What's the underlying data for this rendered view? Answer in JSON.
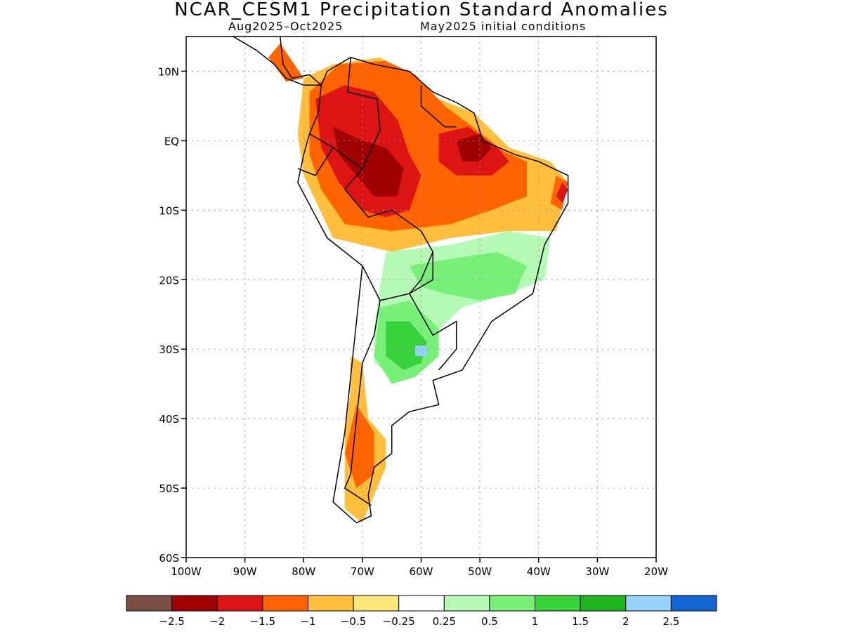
{
  "title": "NCAR_CESM1 Precipitation Standard Anomalies",
  "subtitle_left": "Aug2025–Oct2025",
  "subtitle_right": "May2025 initial conditions",
  "map": {
    "lon_range": [
      -100,
      -20
    ],
    "lat_range": [
      -60,
      15
    ],
    "lat_ticks": [
      {
        "value": 10,
        "label": "10N"
      },
      {
        "value": 0,
        "label": "EQ"
      },
      {
        "value": -10,
        "label": "10S"
      },
      {
        "value": -20,
        "label": "20S"
      },
      {
        "value": -30,
        "label": "30S"
      },
      {
        "value": -40,
        "label": "40S"
      },
      {
        "value": -50,
        "label": "50S"
      },
      {
        "value": -60,
        "label": "60S"
      }
    ],
    "lon_ticks": [
      {
        "value": -100,
        "label": "100W"
      },
      {
        "value": -90,
        "label": "90W"
      },
      {
        "value": -80,
        "label": "80W"
      },
      {
        "value": -70,
        "label": "70W"
      },
      {
        "value": -60,
        "label": "60W"
      },
      {
        "value": -50,
        "label": "50W"
      },
      {
        "value": -40,
        "label": "40W"
      },
      {
        "value": -30,
        "label": "30W"
      },
      {
        "value": -20,
        "label": "20W"
      }
    ],
    "grid": true
  },
  "colorbar": {
    "colors": [
      "#7b5044",
      "#a00000",
      "#dc1414",
      "#ff6400",
      "#ffbe3c",
      "#ffe678",
      "#ffffff",
      "#b4fab4",
      "#78f078",
      "#37d23c",
      "#1eb41e",
      "#96d2fa",
      "#1464d2"
    ],
    "labels": [
      "−2.5",
      "−2",
      "−1.5",
      "−1",
      "−0.5",
      "−0.25",
      "0.25",
      "0.5",
      "1",
      "1.5",
      "2",
      "2.5"
    ]
  },
  "anomaly_regions": [
    {
      "name": "central america",
      "level": -1,
      "points": [
        [
          -84,
          14
        ],
        [
          -82,
          11.5
        ],
        [
          -80,
          9
        ],
        [
          -83,
          8.5
        ],
        [
          -86,
          12
        ]
      ]
    },
    {
      "name": "northwest amazon ring",
      "level": -0.5,
      "points": [
        [
          -80,
          9
        ],
        [
          -75,
          11
        ],
        [
          -67,
          12
        ],
        [
          -62,
          9.5
        ],
        [
          -57,
          6
        ],
        [
          -51,
          4
        ],
        [
          -45,
          -1
        ],
        [
          -38,
          -3
        ],
        [
          -35,
          -6
        ],
        [
          -37,
          -13
        ],
        [
          -45,
          -13
        ],
        [
          -55,
          -14
        ],
        [
          -65,
          -16
        ],
        [
          -75,
          -14
        ],
        [
          -80,
          -5
        ],
        [
          -81,
          1
        ]
      ]
    },
    {
      "name": "northern band",
      "level": -1,
      "points": [
        [
          -79,
          7
        ],
        [
          -74,
          11
        ],
        [
          -66,
          11.5
        ],
        [
          -61,
          9.5
        ],
        [
          -56,
          5
        ],
        [
          -52,
          2.5
        ],
        [
          -46,
          -1.5
        ],
        [
          -42,
          -3
        ],
        [
          -42,
          -8
        ],
        [
          -48,
          -10
        ],
        [
          -55,
          -12
        ],
        [
          -65,
          -13
        ],
        [
          -73,
          -12
        ],
        [
          -77,
          -7
        ],
        [
          -79,
          -2
        ]
      ]
    },
    {
      "name": "western amazon",
      "level": -1.5,
      "points": [
        [
          -78,
          6
        ],
        [
          -73,
          8
        ],
        [
          -68,
          7
        ],
        [
          -64,
          3
        ],
        [
          -62,
          -2
        ],
        [
          -60,
          -5
        ],
        [
          -62,
          -10
        ],
        [
          -66,
          -11
        ],
        [
          -70,
          -10
        ],
        [
          -74,
          -6
        ],
        [
          -77,
          -1
        ]
      ]
    },
    {
      "name": "western amazon core",
      "level": -2,
      "points": [
        [
          -75,
          2
        ],
        [
          -70,
          0
        ],
        [
          -66,
          -1
        ],
        [
          -63,
          -4
        ],
        [
          -64,
          -8
        ],
        [
          -68,
          -8
        ],
        [
          -71,
          -5
        ],
        [
          -74,
          -2
        ]
      ]
    },
    {
      "name": "eastern amazon",
      "level": -1.5,
      "points": [
        [
          -57,
          1
        ],
        [
          -52,
          2
        ],
        [
          -47,
          -1
        ],
        [
          -45,
          -3
        ],
        [
          -48,
          -5
        ],
        [
          -54,
          -5
        ],
        [
          -57,
          -3
        ]
      ]
    },
    {
      "name": "eastern amazon core",
      "level": -2,
      "points": [
        [
          -54,
          0
        ],
        [
          -50,
          1
        ],
        [
          -48,
          -1
        ],
        [
          -50,
          -3
        ],
        [
          -53,
          -3
        ]
      ]
    },
    {
      "name": "northeast brazil",
      "level": -1,
      "points": [
        [
          -37,
          -5
        ],
        [
          -35,
          -6
        ],
        [
          -36,
          -10
        ],
        [
          -38,
          -9
        ]
      ]
    },
    {
      "name": "northeast brazil core",
      "level": -1.5,
      "points": [
        [
          -36,
          -6
        ],
        [
          -35,
          -7
        ],
        [
          -36,
          -9
        ],
        [
          -37,
          -8
        ]
      ]
    },
    {
      "name": "central brazil wet",
      "level": 0.5,
      "points": [
        [
          -66,
          -16
        ],
        [
          -55,
          -15
        ],
        [
          -45,
          -13
        ],
        [
          -38,
          -14
        ],
        [
          -39,
          -20
        ],
        [
          -45,
          -22
        ],
        [
          -53,
          -24
        ],
        [
          -58,
          -28
        ],
        [
          -61,
          -32
        ],
        [
          -64,
          -34
        ],
        [
          -68,
          -32
        ],
        [
          -68,
          -27
        ],
        [
          -67,
          -21
        ]
      ]
    },
    {
      "name": "central brazil core",
      "level": 1,
      "points": [
        [
          -62,
          -18
        ],
        [
          -55,
          -17
        ],
        [
          -47,
          -16
        ],
        [
          -42,
          -18
        ],
        [
          -44,
          -22
        ],
        [
          -50,
          -23
        ],
        [
          -56,
          -22
        ],
        [
          -60,
          -21
        ]
      ]
    },
    {
      "name": "argentina wet",
      "level": 1,
      "points": [
        [
          -67,
          -24
        ],
        [
          -62,
          -23
        ],
        [
          -57,
          -27
        ],
        [
          -57,
          -31
        ],
        [
          -61,
          -34
        ],
        [
          -65,
          -35
        ],
        [
          -68,
          -31
        ]
      ]
    },
    {
      "name": "argentina core",
      "level": 1.5,
      "points": [
        [
          -66,
          -26
        ],
        [
          -62,
          -26
        ],
        [
          -59,
          -29
        ],
        [
          -60,
          -32
        ],
        [
          -63,
          -33
        ],
        [
          -66,
          -31
        ]
      ]
    },
    {
      "name": "argentina blue spot",
      "level": 2,
      "points": [
        [
          -61,
          -29.5
        ],
        [
          -59,
          -29.5
        ],
        [
          -59,
          -31
        ],
        [
          -61,
          -31
        ]
      ]
    },
    {
      "name": "chile dry",
      "level": -0.5,
      "points": [
        [
          -72,
          -31
        ],
        [
          -70,
          -32
        ],
        [
          -69,
          -40
        ],
        [
          -66,
          -43
        ],
        [
          -66,
          -47
        ],
        [
          -70,
          -55
        ],
        [
          -73,
          -53
        ],
        [
          -73,
          -42
        ],
        [
          -72,
          -36
        ]
      ]
    },
    {
      "name": "chile dry core",
      "level": -1,
      "points": [
        [
          -71,
          -38
        ],
        [
          -68,
          -42
        ],
        [
          -68,
          -48
        ],
        [
          -71,
          -50
        ],
        [
          -73,
          -45
        ]
      ]
    }
  ],
  "coastline": [
    [
      -77,
      8
    ],
    [
      -76,
      10
    ],
    [
      -72,
      12
    ],
    [
      -68,
      11
    ],
    [
      -62,
      10
    ],
    [
      -58,
      7
    ],
    [
      -54,
      5.5
    ],
    [
      -51,
      4
    ],
    [
      -49.5,
      0
    ],
    [
      -44,
      -2
    ],
    [
      -40,
      -3
    ],
    [
      -35,
      -5
    ],
    [
      -35,
      -9
    ],
    [
      -39,
      -15
    ],
    [
      -41,
      -22
    ],
    [
      -48,
      -26
    ],
    [
      -53,
      -33
    ],
    [
      -58,
      -34.5
    ],
    [
      -57,
      -38
    ],
    [
      -62,
      -39
    ],
    [
      -65,
      -41
    ],
    [
      -65,
      -45
    ],
    [
      -68,
      -47
    ],
    [
      -69,
      -51
    ],
    [
      -68.5,
      -54
    ],
    [
      -71,
      -55
    ],
    [
      -75,
      -52
    ],
    [
      -73,
      -42
    ],
    [
      -71.5,
      -30
    ],
    [
      -70,
      -18
    ],
    [
      -76,
      -14
    ],
    [
      -81,
      -6
    ],
    [
      -80,
      -2
    ],
    [
      -79,
      1
    ],
    [
      -77.5,
      4
    ]
  ],
  "central_america": [
    [
      -92,
      15
    ],
    [
      -88,
      13
    ],
    [
      -85,
      11
    ],
    [
      -83,
      9
    ],
    [
      -80,
      8
    ],
    [
      -77,
      8
    ],
    [
      -79,
      9.5
    ],
    [
      -82,
      9
    ],
    [
      -83.5,
      11
    ],
    [
      -84,
      15
    ],
    [
      -88,
      16
    ],
    [
      -92,
      16
    ]
  ],
  "borders": [
    [
      [
        -72,
        12
      ],
      [
        -72.5,
        7
      ],
      [
        -67.5,
        6
      ],
      [
        -67,
        1.5
      ],
      [
        -70,
        -4
      ],
      [
        -73,
        -7
      ],
      [
        -69,
        -11
      ],
      [
        -65,
        -10
      ],
      [
        -60,
        -13
      ],
      [
        -58,
        -16
      ],
      [
        -58,
        -20
      ],
      [
        -62,
        -22
      ],
      [
        -58,
        -28
      ],
      [
        -54,
        -26
      ],
      [
        -54,
        -30
      ],
      [
        -57,
        -33
      ]
    ],
    [
      [
        -60,
        8
      ],
      [
        -60,
        5
      ],
      [
        -56,
        2
      ],
      [
        -54,
        2
      ]
    ],
    [
      [
        -79,
        1
      ],
      [
        -75,
        -1
      ],
      [
        -70,
        -4
      ]
    ],
    [
      [
        -81,
        -4
      ],
      [
        -78,
        -5
      ],
      [
        -75,
        -1
      ]
    ],
    [
      [
        -70,
        -18
      ],
      [
        -67,
        -23
      ],
      [
        -68,
        -28
      ],
      [
        -70,
        -32
      ],
      [
        -71,
        -40
      ],
      [
        -72,
        -48
      ],
      [
        -73,
        -50
      ],
      [
        -68.5,
        -52.5
      ]
    ],
    [
      [
        -62,
        -22
      ],
      [
        -67,
        -23
      ]
    ],
    [
      [
        -58,
        -16
      ],
      [
        -60,
        -20
      ],
      [
        -62,
        -22
      ]
    ]
  ]
}
